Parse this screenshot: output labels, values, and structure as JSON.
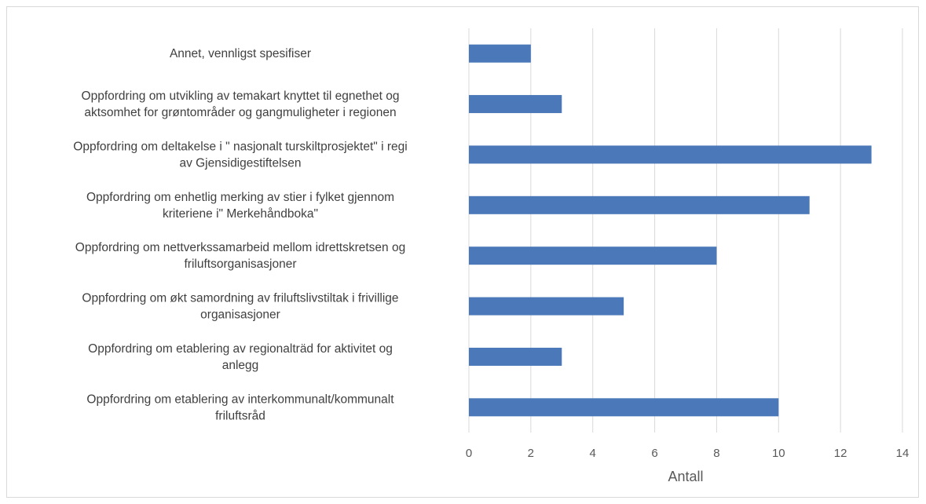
{
  "chart_data": {
    "type": "bar",
    "orientation": "horizontal",
    "categories": [
      [
        "Oppfordring om etablering av interkommunalt/kommunalt",
        "friluftsråd"
      ],
      [
        "Oppfordring om etablering av regionalträd for aktivitet og",
        "anlegg"
      ],
      [
        "Oppfordring om økt samordning av friluftslivstiltak i frivillige",
        "organisasjoner"
      ],
      [
        "Oppfordring om nettverkssamarbeid mellom idrettskretsen og",
        "friluftsorganisasjoner"
      ],
      [
        "Oppfordring om enhetlig merking av stier i fylket gjennom",
        "kriteriene i\" Merkehåndboka\""
      ],
      [
        "Oppfordring om deltakelse i \" nasjonalt turskiltprosjektet\" i regi",
        "av Gjensidigestiftelsen"
      ],
      [
        "Oppfordring om utvikling av temakart knyttet til egnethet og",
        "aktsomhet for grøntområder og gangmuligheter i regionen"
      ],
      [
        "Annet, vennligst spesifiser"
      ]
    ],
    "values": [
      10,
      3,
      5,
      8,
      11,
      13,
      3,
      2
    ],
    "xlabel": "Antall",
    "ylabel": "",
    "xlim": [
      0,
      14
    ],
    "xticks": [
      "0",
      "2",
      "4",
      "6",
      "8",
      "10",
      "12",
      "14"
    ],
    "grid": "vertical",
    "bar_color": "#4a78b8",
    "grid_color": "#d9d9d9"
  }
}
